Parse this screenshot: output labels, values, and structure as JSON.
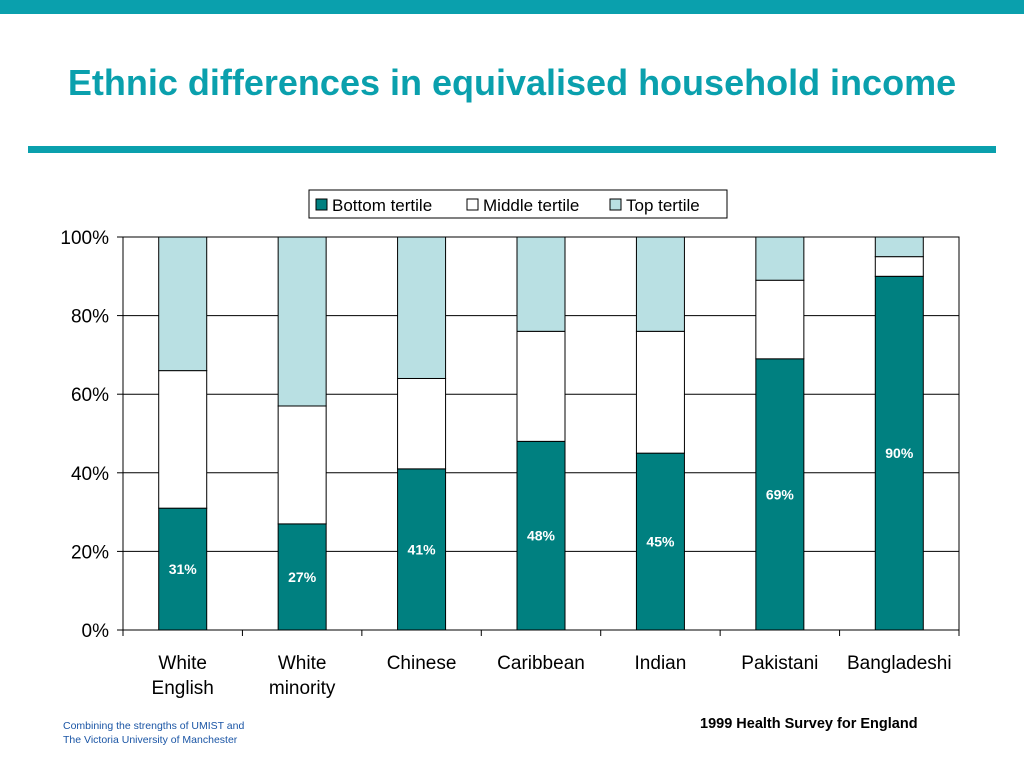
{
  "slide": {
    "title": "Ethnic differences in equivalised household income",
    "footer_left": [
      "Combining the strengths of UMIST and",
      "The Victoria University of Manchester"
    ],
    "source": "1999 Health Survey for England"
  },
  "colors": {
    "accent": "#0aa0ad",
    "bottom": "#008080",
    "middle": "#ffffff",
    "top": "#b9e0e3"
  },
  "chart_data": {
    "type": "bar",
    "stacked": true,
    "percent": true,
    "categories": [
      [
        "White",
        "English"
      ],
      [
        "White",
        "minority"
      ],
      [
        "Chinese"
      ],
      [
        "Caribbean"
      ],
      [
        "Indian"
      ],
      [
        "Pakistani"
      ],
      [
        "Bangladeshi"
      ]
    ],
    "series": [
      {
        "name": "Bottom tertile",
        "values": [
          31,
          27,
          41,
          48,
          45,
          69,
          90
        ],
        "labels": [
          "31%",
          "27%",
          "41%",
          "48%",
          "45%",
          "69%",
          "90%"
        ]
      },
      {
        "name": "Middle tertile",
        "values": [
          35,
          30,
          23,
          28,
          31,
          20,
          5
        ]
      },
      {
        "name": "Top tertile",
        "values": [
          34,
          43,
          36,
          24,
          24,
          11,
          5
        ]
      }
    ],
    "yticks": [
      "0%",
      "20%",
      "40%",
      "60%",
      "80%",
      "100%"
    ],
    "ylim": [
      0,
      100
    ],
    "legend_position": "top",
    "grid": true
  }
}
